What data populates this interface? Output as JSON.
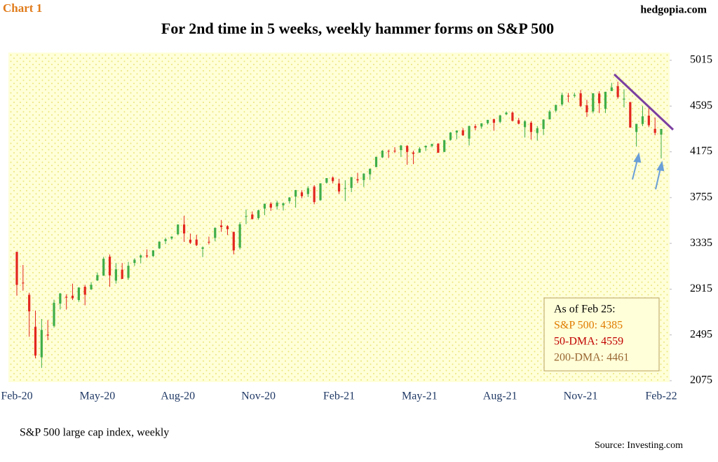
{
  "chart_data": {
    "type": "candlestick",
    "title": "For 2nd time in 5 weeks, weekly hammer forms on S&P 500",
    "chart_label": "Chart 1",
    "site": "hedgopia.com",
    "axis_label": "S&P 500 large cap index, weekly",
    "source": "Source: Investing.com",
    "legend_box": [
      "As of Feb 25:",
      "S&P 500: 4385",
      "50-DMA: 4559",
      "200-DMA: 4461"
    ],
    "up_color": "#3fae49",
    "down_color": "#e3261f",
    "ylim": [
      2075,
      5015
    ],
    "yticks": [
      2075,
      2495,
      2915,
      3335,
      3755,
      4175,
      4595,
      5015
    ],
    "categories": [
      "Feb-20",
      null,
      null,
      null,
      null,
      null,
      null,
      null,
      null,
      null,
      null,
      null,
      null,
      "May-20",
      null,
      null,
      null,
      null,
      null,
      null,
      null,
      null,
      null,
      null,
      null,
      null,
      "Aug-20",
      null,
      null,
      null,
      null,
      null,
      null,
      null,
      null,
      null,
      null,
      null,
      null,
      "Nov-20",
      null,
      null,
      null,
      null,
      null,
      null,
      null,
      null,
      null,
      null,
      null,
      null,
      "Feb-21",
      null,
      null,
      null,
      null,
      null,
      null,
      null,
      null,
      null,
      null,
      null,
      null,
      "May-21",
      null,
      null,
      null,
      null,
      null,
      null,
      null,
      null,
      null,
      null,
      null,
      null,
      "Aug-21",
      null,
      null,
      null,
      null,
      null,
      null,
      null,
      null,
      null,
      null,
      null,
      null,
      "Nov-21",
      null,
      null,
      null,
      null,
      null,
      null,
      null,
      null,
      null,
      null,
      null,
      null,
      "Feb-22"
    ],
    "open": [
      3257,
      2974,
      2863,
      2569,
      2290,
      2498,
      2578,
      2782,
      2845,
      2855,
      2815,
      2937,
      2913,
      2995,
      3038,
      3213,
      2993,
      3094,
      3018,
      3155,
      3205,
      3224,
      3219,
      3289,
      3356,
      3380,
      3419,
      3508,
      3369,
      3370,
      3285,
      3349,
      3385,
      3500,
      3493,
      3441,
      3296,
      3583,
      3600,
      3567,
      3654,
      3699,
      3675,
      3684,
      3723,
      3764,
      3803,
      3788,
      3856,
      3731,
      3892,
      3939,
      3885,
      3842,
      3844,
      3924,
      3916,
      3969,
      4035,
      4124,
      4183,
      4185,
      4191,
      4229,
      4169,
      4168,
      4216,
      4229,
      4249,
      4174,
      4285,
      4352,
      4373,
      4296,
      4410,
      4407,
      4438,
      4474,
      4450,
      4519,
      4535,
      4465,
      4402,
      4442,
      4348,
      4385,
      4473,
      4553,
      4610,
      4690,
      4689,
      4712,
      4602,
      4545,
      4710,
      4569,
      4733,
      4778,
      4655,
      4632,
      4357,
      4431,
      4507,
      4386,
      4333
    ],
    "high": [
      3259,
      3137,
      2882,
      2718,
      2641,
      2631,
      2818,
      2880,
      2868,
      2965,
      2932,
      2955,
      2980,
      3068,
      3211,
      3233,
      3155,
      3155,
      3165,
      3198,
      3233,
      3280,
      3272,
      3352,
      3387,
      3399,
      3509,
      3588,
      3425,
      3414,
      3307,
      3397,
      3482,
      3550,
      3502,
      3441,
      3529,
      3646,
      3628,
      3645,
      3699,
      3713,
      3726,
      3711,
      3760,
      3826,
      3823,
      3859,
      3870,
      3887,
      3934,
      3950,
      3928,
      3914,
      3944,
      3983,
      3978,
      4020,
      4129,
      4191,
      4195,
      4218,
      4238,
      4237,
      4186,
      4219,
      4234,
      4249,
      4256,
      4286,
      4356,
      4372,
      4393,
      4415,
      4429,
      4437,
      4469,
      4480,
      4513,
      4546,
      4546,
      4486,
      4466,
      4456,
      4412,
      4475,
      4559,
      4608,
      4718,
      4715,
      4718,
      4743,
      4652,
      4713,
      4731,
      4726,
      4808,
      4819,
      4749,
      4632,
      4432,
      4595,
      4590,
      4490,
      4385
    ],
    "low": [
      2855,
      2901,
      2478,
      2280,
      2192,
      2447,
      2562,
      2729,
      2728,
      2815,
      2798,
      2767,
      2908,
      2990,
      3038,
      2936,
      2966,
      3008,
      3000,
      3128,
      3151,
      3200,
      3209,
      3284,
      3328,
      3368,
      3410,
      3349,
      3329,
      3310,
      3209,
      3325,
      3354,
      3441,
      3411,
      3234,
      3280,
      3511,
      3555,
      3552,
      3594,
      3633,
      3645,
      3636,
      3700,
      3663,
      3749,
      3760,
      3694,
      3726,
      3884,
      3885,
      3789,
      3723,
      3805,
      3888,
      3853,
      3917,
      4035,
      4118,
      4118,
      4164,
      4128,
      4056,
      4062,
      4167,
      4183,
      4216,
      4165,
      4173,
      4278,
      4290,
      4321,
      4233,
      4372,
      4387,
      4425,
      4368,
      4437,
      4514,
      4457,
      4427,
      4306,
      4288,
      4278,
      4329,
      4473,
      4537,
      4595,
      4630,
      4672,
      4585,
      4495,
      4529,
      4531,
      4531,
      4733,
      4662,
      4582,
      4395,
      4223,
      4411,
      4401,
      4327,
      4114
    ],
    "close": [
      2954,
      2972,
      2711,
      2305,
      2541,
      2489,
      2790,
      2875,
      2837,
      2831,
      2930,
      2864,
      2955,
      3044,
      3194,
      3041,
      3097,
      3009,
      3130,
      3185,
      3224,
      3215,
      3271,
      3351,
      3373,
      3397,
      3508,
      3426,
      3341,
      3319,
      3298,
      3348,
      3477,
      3484,
      3465,
      3270,
      3510,
      3585,
      3558,
      3638,
      3699,
      3663,
      3709,
      3703,
      3756,
      3824,
      3768,
      3841,
      3714,
      3886,
      3934,
      3906,
      3811,
      3842,
      3943,
      3913,
      3975,
      4020,
      4129,
      4185,
      4180,
      4181,
      4233,
      4174,
      4156,
      4204,
      4230,
      4247,
      4167,
      4281,
      4352,
      4370,
      4327,
      4412,
      4395,
      4437,
      4468,
      4442,
      4509,
      4535,
      4459,
      4433,
      4455,
      4357,
      4391,
      4471,
      4545,
      4605,
      4697,
      4683,
      4698,
      4595,
      4538,
      4712,
      4621,
      4726,
      4766,
      4677,
      4663,
      4398,
      4432,
      4501,
      4419,
      4349,
      4385
    ]
  }
}
